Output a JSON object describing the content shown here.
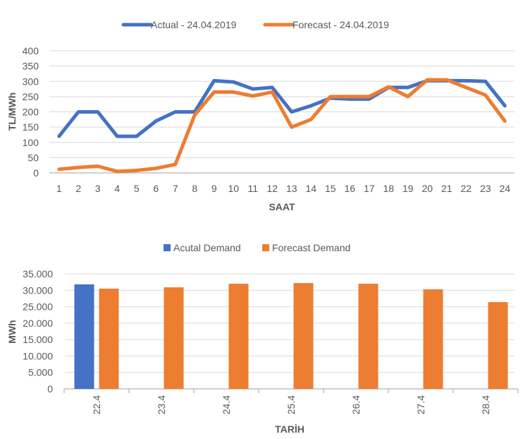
{
  "colors": {
    "actual": "#4472c4",
    "forecast": "#ed7d31",
    "grid": "#d9d9d9",
    "text": "#595959"
  },
  "chart_data": [
    {
      "type": "line",
      "legend": [
        "Actual - 24.04.2019",
        "Forecast - 24.04.2019"
      ],
      "legend_position": "top",
      "xlabel": "SAAT",
      "ylabel": "TL/MWh",
      "x": [
        "1",
        "2",
        "3",
        "4",
        "5",
        "6",
        "7",
        "8",
        "9",
        "10",
        "11",
        "12",
        "13",
        "14",
        "15",
        "16",
        "17",
        "18",
        "19",
        "20",
        "21",
        "22",
        "23",
        "24"
      ],
      "yticks": [
        "0",
        "50",
        "100",
        "150",
        "200",
        "250",
        "300",
        "350",
        "400"
      ],
      "ylim": [
        0,
        400
      ],
      "grid": true,
      "series": [
        {
          "name": "Actual - 24.04.2019",
          "values": [
            120,
            200,
            200,
            120,
            120,
            170,
            200,
            200,
            302,
            298,
            275,
            280,
            200,
            220,
            245,
            242,
            242,
            280,
            280,
            302,
            302,
            302,
            300,
            220
          ]
        },
        {
          "name": "Forecast - 24.04.2019",
          "values": [
            12,
            18,
            22,
            5,
            8,
            15,
            28,
            190,
            265,
            265,
            252,
            265,
            150,
            175,
            250,
            250,
            250,
            282,
            250,
            305,
            305,
            280,
            255,
            170
          ]
        }
      ]
    },
    {
      "type": "bar",
      "legend": [
        "Acutal Demand",
        "Forecast Demand"
      ],
      "legend_position": "top",
      "xlabel": "TARİH",
      "ylabel": "MWh",
      "categories": [
        "22.4",
        "23.4",
        "24.4",
        "25.4",
        "26.4",
        "27.4",
        "28.4"
      ],
      "yticks": [
        "0",
        "5.000",
        "10.000",
        "15.000",
        "20.000",
        "25.000",
        "30.000",
        "35.000"
      ],
      "ylim": [
        0,
        35000
      ],
      "grid": true,
      "series": [
        {
          "name": "Acutal Demand",
          "values": [
            31800,
            null,
            null,
            null,
            null,
            null,
            null
          ]
        },
        {
          "name": "Forecast Demand",
          "values": [
            30500,
            30900,
            32000,
            32200,
            32000,
            30300,
            26400
          ]
        }
      ]
    }
  ]
}
